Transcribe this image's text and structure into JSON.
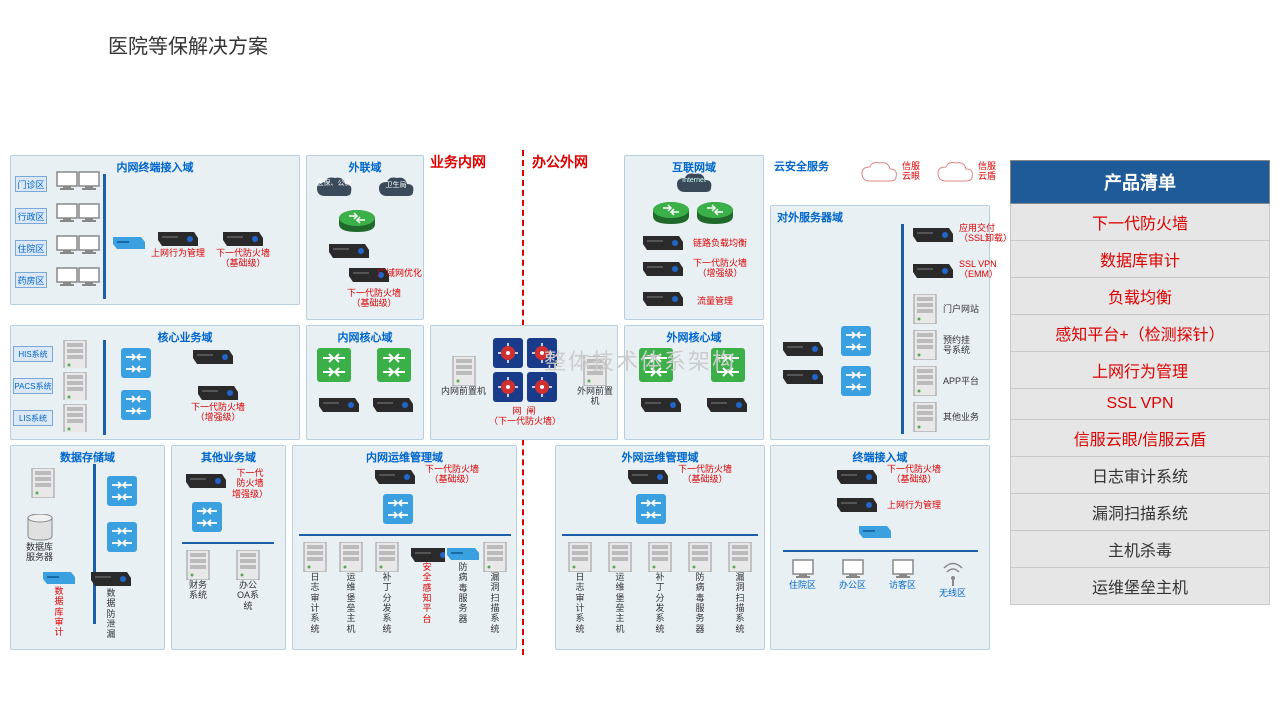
{
  "title": "医院等保解决方案",
  "watermark": "整体技术体系架构",
  "net_labels": {
    "inner": "业务内网",
    "outer": "办公外网"
  },
  "zones": {
    "terminal_in": {
      "title": "内网终端接入域",
      "rows": [
        "门诊区",
        "行政区",
        "住院区",
        "药房区"
      ],
      "mgr": "上网行为管理",
      "fw": "下一代防火墙\n（基础级）"
    },
    "external": {
      "title": "外联域",
      "cloud1": "医保、公保",
      "cloud2": "卫生局",
      "wan": "广域网优化",
      "fw": "下一代防火墙\n（基础级）"
    },
    "corebiz": {
      "title": "核心业务域",
      "rows": [
        "HIS系统",
        "PACS系统",
        "LIS系统"
      ],
      "fw": "下一代防火墙\n（增强级）"
    },
    "innercore": {
      "title": "内网核心域"
    },
    "gateway": {
      "front1": "内网前置机",
      "mid": "网  闸\n（下一代防火墙）",
      "front2": "外网前置机"
    },
    "storage": {
      "title": "数据存储域",
      "db": "数据库\n服务器",
      "audit": "数\n据\n库\n审\n计",
      "leak": "数\n据\n防\n泄\n漏"
    },
    "otherbiz": {
      "title": "其他业务域",
      "fw": "下一代\n防火墙\n增强级）",
      "it1": "财务\n系统",
      "it2": "办公\nOA系\n统"
    },
    "inops": {
      "title": "内网运维管理域",
      "fw": "下一代防火墙\n（基础级）",
      "items": [
        "日\n志\n审\n计\n系\n统",
        "运\n维\n堡\n垒\n主\n机",
        "补\n丁\n分\n发\n系\n统",
        "安\n全\n感\n知\n平\n台",
        "防\n病\n毒\n服\n务\n器",
        "漏\n洞\n扫\n描\n系\n统"
      ]
    },
    "outcore": {
      "title": "外网核心域"
    },
    "internet": {
      "title": "互联网域",
      "net": "Internet",
      "lb": "链路负载均衡",
      "fw": "下一代防火墙\n（增强级）",
      "flow": "流量管理"
    },
    "outops": {
      "title": "外网运维管理域",
      "fw": "下一代防火墙\n（基础级）",
      "items": [
        "日\n志\n审\n计\n系\n统",
        "运\n维\n堡\n垒\n主\n机",
        "补\n丁\n分\n发\n系\n统",
        "防\n病\n毒\n服\n务\n器",
        "漏\n洞\n扫\n描\n系\n统"
      ]
    },
    "cloudsec": {
      "title": "云安全服务",
      "c1": "信服\n云眼",
      "c2": "信服\n云盾"
    },
    "extserver": {
      "title": "对外服务器域",
      "items": [
        {
          "t": "应用交付\n（SSL卸载）",
          "c": "red"
        },
        {
          "t": "SSL VPN\n（EMM）",
          "c": "red"
        },
        {
          "t": "门户网站",
          "c": "black"
        },
        {
          "t": "预约挂\n号系统",
          "c": "black"
        },
        {
          "t": "APP平台",
          "c": "black"
        },
        {
          "t": "其他业务",
          "c": "black"
        }
      ]
    },
    "termout": {
      "title": "终端接入域",
      "fw": "下一代防火墙\n（基础级）",
      "mgr": "上网行为管理",
      "areas": [
        "住院区",
        "办公区",
        "访客区",
        "无线区"
      ]
    }
  },
  "product_list": {
    "header": "产品清单",
    "rows": [
      {
        "t": "下一代防火墙",
        "c": "red"
      },
      {
        "t": "数据库审计",
        "c": "red"
      },
      {
        "t": "负载均衡",
        "c": "red"
      },
      {
        "t": "感知平台+（检测探针）",
        "c": "red"
      },
      {
        "t": "上网行为管理",
        "c": "red"
      },
      {
        "t": "SSL VPN",
        "c": "red"
      },
      {
        "t": "信服云眼/信服云盾",
        "c": "red"
      },
      {
        "t": "日志审计系统",
        "c": "black"
      },
      {
        "t": "漏洞扫描系统",
        "c": "black"
      },
      {
        "t": "主机杀毒",
        "c": "black"
      },
      {
        "t": "运维堡垒主机",
        "c": "black"
      }
    ]
  },
  "colors": {
    "zone_border": "#b8cfe0",
    "zone_bg": "#e8f0f4",
    "title_blue": "#0066cc",
    "red": "#d00",
    "bus": "#1a5fa8",
    "plist_h": "#1f5b99",
    "plist_bg": "#e6e6e6"
  }
}
